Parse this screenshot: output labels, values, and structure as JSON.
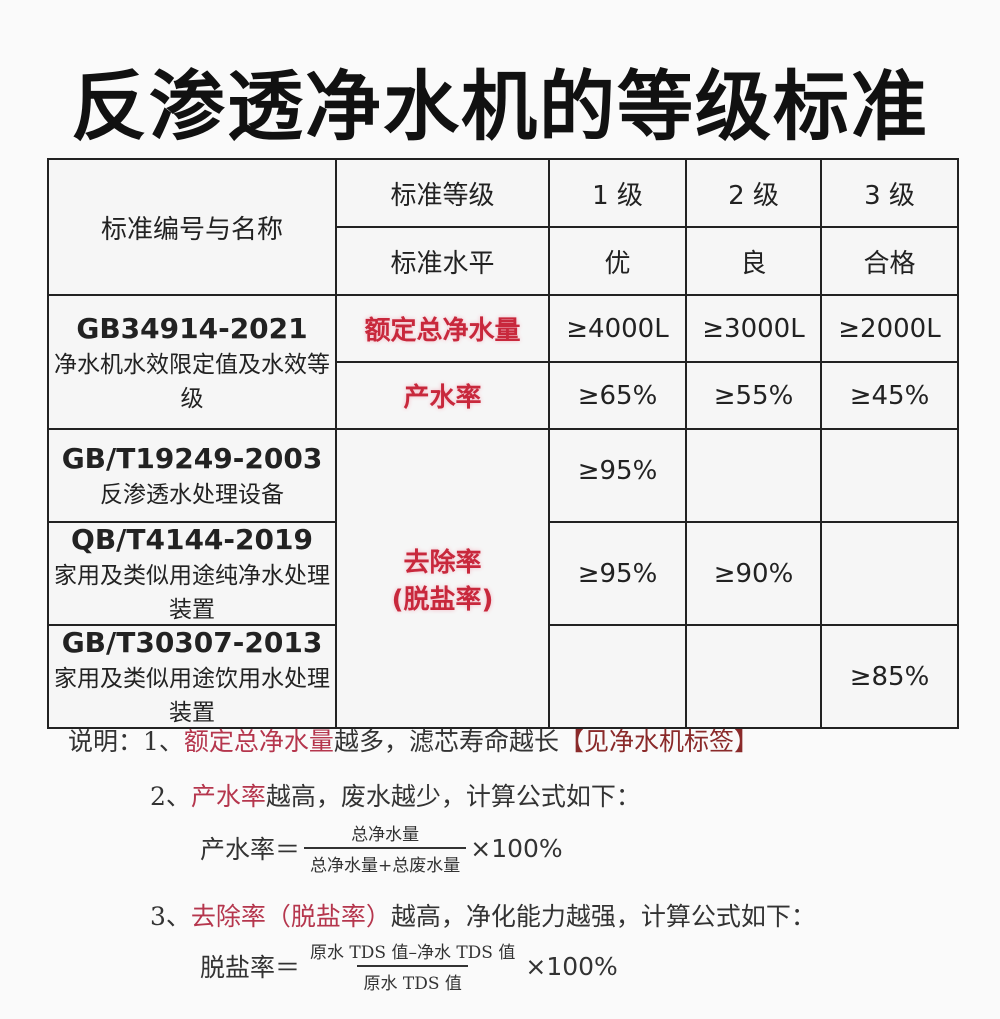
{
  "title": "反渗透净水机的等级标准",
  "table": {
    "header": {
      "std_label": "标准编号与名称",
      "grade_label": "标准等级",
      "level_label": "标准水平",
      "grades": [
        "1 级",
        "2 级",
        "3 级"
      ],
      "levels": [
        "优",
        "良",
        "合格"
      ]
    },
    "rows": [
      {
        "code": "GB34914-2021",
        "name": "净水机水效限定值及水效等级",
        "metrics": [
          {
            "label": "额定总净水量",
            "values": [
              "≥4000L",
              "≥3000L",
              "≥2000L"
            ]
          },
          {
            "label": "产水率",
            "values": [
              "≥65%",
              "≥55%",
              "≥45%"
            ]
          }
        ]
      },
      {
        "code": "GB/T19249-2003",
        "name": "反渗透水处理设备",
        "values": [
          "≥95%",
          "",
          ""
        ]
      },
      {
        "code": "QB/T4144-2019",
        "name": "家用及类似用途纯净水处理装置",
        "values": [
          "≥95%",
          "≥90%",
          ""
        ]
      },
      {
        "code": "GB/T30307-2013",
        "name": "家用及类似用途饮用水处理装置",
        "values": [
          "",
          "",
          "≥85%"
        ]
      }
    ],
    "removal_label_1": "去除率",
    "removal_label_2": "(脱盐率)"
  },
  "notes": {
    "prefix": "说明：",
    "n1": {
      "num": "1、",
      "hl": "额定总净水量",
      "text": "越多，滤芯寿命越长",
      "bracket": "【见净水机标签】"
    },
    "n2": {
      "num": "2、",
      "hl": "产水率",
      "text": "越高，废水越少，计算公式如下："
    },
    "f1": {
      "lhs": "产水率＝",
      "num": "总净水量",
      "den": "总净水量+总废水量",
      "mult": "×100%"
    },
    "n3": {
      "num": "3、",
      "hl": "去除率（脱盐率）",
      "text": "越高，净化能力越强，计算公式如下："
    },
    "f2": {
      "lhs": "脱盐率＝",
      "num": "原水 TDS 值–净水 TDS 值",
      "den": "原水 TDS 值",
      "mult": "×100%"
    }
  }
}
